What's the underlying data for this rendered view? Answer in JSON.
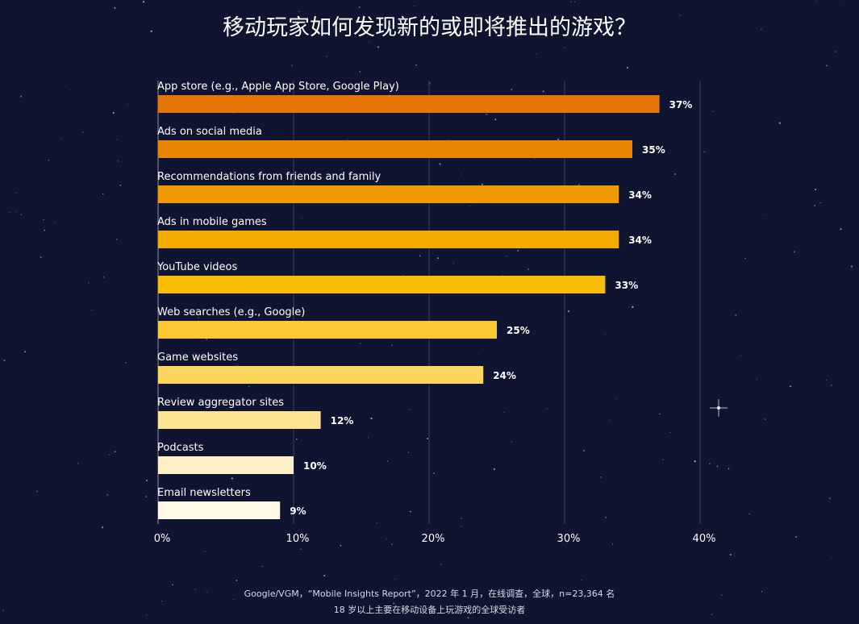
{
  "chart_data": {
    "type": "bar",
    "orientation": "horizontal",
    "title": "移动玩家如何发现新的或即将推出的游戏？",
    "categories": [
      "App store (e.g., Apple App Store, Google Play)",
      "Ads on social media",
      "Recommendations from friends and family",
      "Ads in mobile games",
      "YouTube videos",
      "Web searches (e.g., Google)",
      "Game websites",
      "Review aggregator sites",
      "Podcasts",
      "Email newsletters"
    ],
    "values": [
      37,
      35,
      34,
      34,
      33,
      25,
      24,
      12,
      10,
      9
    ],
    "value_labels": [
      "37%",
      "35%",
      "34%",
      "34%",
      "33%",
      "25%",
      "24%",
      "12%",
      "10%",
      "9%"
    ],
    "bar_colors": [
      "#e57504",
      "#ea8502",
      "#f09a00",
      "#f5ab00",
      "#f8bd00",
      "#fbc834",
      "#fdd65e",
      "#fee393",
      "#fff0c8",
      "#fff8e4"
    ],
    "xlim": [
      0,
      40
    ],
    "xticks": [
      0,
      10,
      20,
      30,
      40
    ],
    "xtick_labels": [
      "0%",
      "10%",
      "20%",
      "30%",
      "40%"
    ],
    "grid": true
  },
  "footer": {
    "line1": "Google/VGM，“Mobile Insights Report”，2022 年 1 月，在线调查，全球，n=23,364 名",
    "line2": "18 岁以上主要在移动设备上玩游戏的全球受访者"
  }
}
